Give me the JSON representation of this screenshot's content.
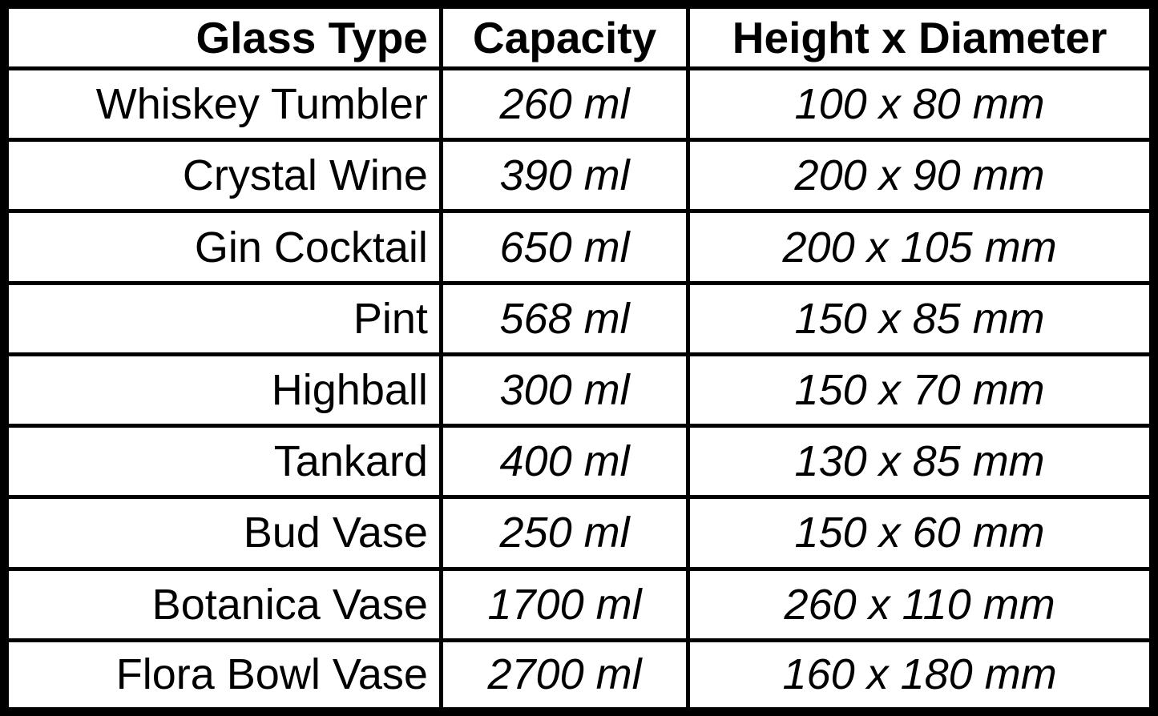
{
  "colors": {
    "border": "#000000",
    "background": "#ffffff",
    "text": "#000000"
  },
  "chart_data": {
    "type": "table",
    "columns": [
      "Glass Type",
      "Capacity",
      "Height x Diameter"
    ],
    "rows": [
      {
        "glass_type": "Whiskey Tumbler",
        "capacity": "260 ml",
        "dimensions": "100 x 80 mm"
      },
      {
        "glass_type": "Crystal Wine",
        "capacity": "390 ml",
        "dimensions": "200 x 90 mm"
      },
      {
        "glass_type": "Gin Cocktail",
        "capacity": "650 ml",
        "dimensions": "200 x 105 mm"
      },
      {
        "glass_type": "Pint",
        "capacity": "568 ml",
        "dimensions": "150 x 85 mm"
      },
      {
        "glass_type": "Highball",
        "capacity": "300 ml",
        "dimensions": "150 x 70 mm"
      },
      {
        "glass_type": "Tankard",
        "capacity": "400 ml",
        "dimensions": "130 x 85 mm"
      },
      {
        "glass_type": "Bud Vase",
        "capacity": "250 ml",
        "dimensions": "150 x 60 mm"
      },
      {
        "glass_type": "Botanica Vase",
        "capacity": "1700 ml",
        "dimensions": "260 x 110 mm"
      },
      {
        "glass_type": "Flora Bowl Vase",
        "capacity": "2700 ml",
        "dimensions": "160 x 180 mm"
      }
    ]
  }
}
